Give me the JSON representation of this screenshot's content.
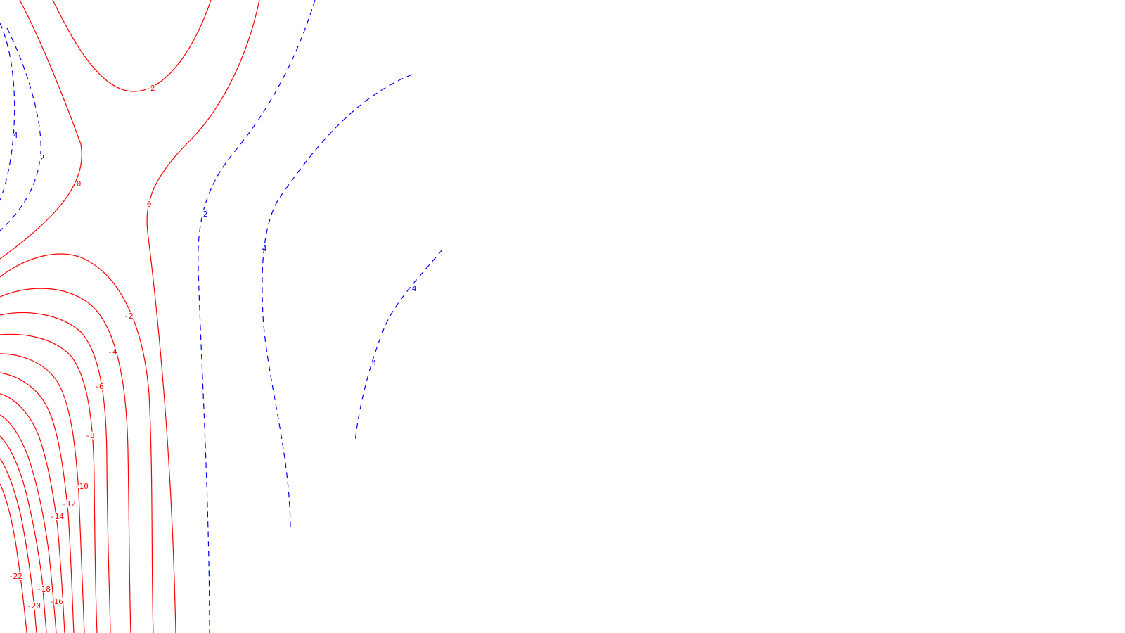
{
  "chart_data": {
    "type": "contour",
    "title": "",
    "xlabel": "",
    "ylabel": "",
    "grid": false,
    "legend": "none",
    "styles": {
      "negative_and_zero": {
        "color": "#ff0000",
        "line": "solid"
      },
      "positive": {
        "color": "#0000ff",
        "line": "dashed"
      }
    },
    "contours": [
      {
        "level": 4,
        "labels": [
          "4"
        ]
      },
      {
        "level": 2,
        "labels": [
          "2"
        ]
      },
      {
        "level": -2,
        "labels": [
          "-2"
        ]
      },
      {
        "level": 0,
        "labels": [
          "0"
        ]
      },
      {
        "level": 0,
        "labels": [
          "0"
        ]
      },
      {
        "level": 2,
        "labels": [
          "2"
        ]
      },
      {
        "level": 4,
        "labels": [
          "4"
        ]
      },
      {
        "level": 4,
        "labels": [
          "4",
          "4"
        ]
      },
      {
        "level": -2,
        "labels": [
          "-2"
        ]
      },
      {
        "level": -4,
        "labels": [
          "-4"
        ]
      },
      {
        "level": -6,
        "labels": [
          "-6"
        ]
      },
      {
        "level": -8,
        "labels": [
          "-8"
        ]
      },
      {
        "level": -10,
        "labels": [
          "-10"
        ]
      },
      {
        "level": -12,
        "labels": [
          "-12"
        ]
      },
      {
        "level": -14,
        "labels": [
          "-14"
        ]
      },
      {
        "level": -16,
        "labels": [
          "-16"
        ]
      },
      {
        "level": -18,
        "labels": [
          "-18"
        ]
      },
      {
        "level": -20,
        "labels": [
          "-20"
        ]
      },
      {
        "level": -22,
        "labels": [
          "-22"
        ]
      }
    ]
  }
}
